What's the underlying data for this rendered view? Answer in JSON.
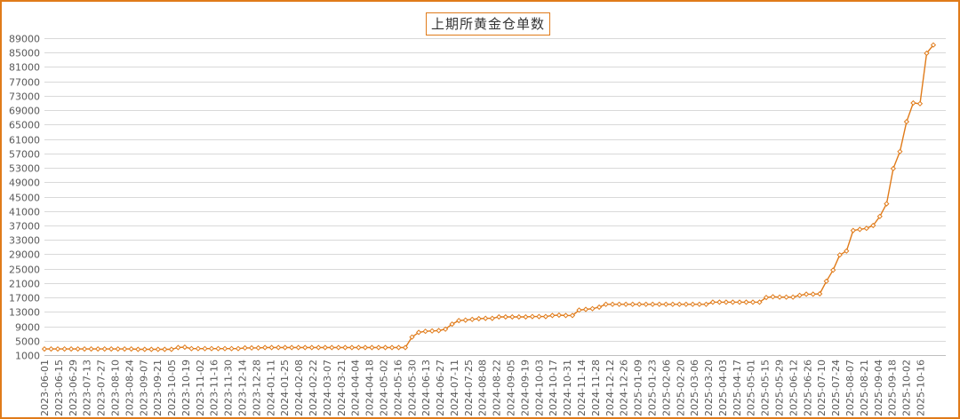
{
  "chart_data": {
    "type": "line",
    "title": "上期所黄金仓单数",
    "ylim": [
      1000,
      89000
    ],
    "yticks": [
      1000,
      5000,
      9000,
      13000,
      17000,
      21000,
      25000,
      29000,
      33000,
      37000,
      41000,
      45000,
      49000,
      53000,
      57000,
      61000,
      65000,
      69000,
      73000,
      77000,
      81000,
      85000,
      89000
    ],
    "ytick_labels": [
      "1000",
      "5000",
      "9000",
      "13000",
      "17000",
      "21000",
      "25000",
      "29000",
      "33000",
      "37000",
      "41000",
      "45000",
      "49000",
      "53000",
      "57000",
      "61000",
      "65000",
      "69000",
      "73000",
      "77000",
      "81000",
      "85000",
      "89000"
    ],
    "xtick_labels": [
      "2023-06-01",
      "2023-06-15",
      "2023-06-29",
      "2023-07-13",
      "2023-07-27",
      "2023-08-10",
      "2023-08-24",
      "2023-09-07",
      "2023-09-21",
      "2023-10-05",
      "2023-10-19",
      "2023-11-02",
      "2023-11-16",
      "2023-11-30",
      "2023-12-14",
      "2023-12-28",
      "2024-01-11",
      "2024-01-25",
      "2024-02-08",
      "2024-02-22",
      "2024-03-07",
      "2024-03-21",
      "2024-04-04",
      "2024-04-18",
      "2024-05-02",
      "2024-05-16",
      "2024-05-30",
      "2024-06-13",
      "2024-06-27",
      "2024-07-11",
      "2024-07-25",
      "2024-08-08",
      "2024-08-22",
      "2024-09-05",
      "2024-09-19",
      "2024-10-03",
      "2024-10-17",
      "2024-10-31",
      "2024-11-14",
      "2024-11-28",
      "2024-12-12",
      "2024-12-26",
      "2025-01-09",
      "2025-01-23",
      "2025-02-06",
      "2025-02-20",
      "2025-03-06",
      "2025-03-20",
      "2025-04-03",
      "2025-04-17",
      "2025-05-01",
      "2025-05-15",
      "2025-05-29",
      "2025-06-12",
      "2025-06-26",
      "2025-07-10",
      "2025-07-24",
      "2025-08-07",
      "2025-08-21",
      "2025-09-04",
      "2025-09-18",
      "2025-10-02",
      "2025-10-16"
    ],
    "grid": true,
    "legend": "none",
    "colors": {
      "line": "#e07b1a",
      "marker_fill": "#ffffff",
      "grid": "#d9d9d9",
      "axis_text": "#595959",
      "frame": "#e07b1a"
    },
    "series": [
      {
        "values": [
          2700,
          2700,
          2700,
          2700,
          2700,
          2700,
          2700,
          2700,
          2700,
          2700,
          2700,
          2700,
          2700,
          2700,
          2600,
          2600,
          2600,
          2600,
          2600,
          2600,
          3100,
          3200,
          2800,
          2800,
          2800,
          2800,
          2800,
          2800,
          2800,
          2800,
          3000,
          3000,
          3000,
          3100,
          3100,
          3100,
          3100,
          3100,
          3100,
          3100,
          3100,
          3100,
          3100,
          3100,
          3100,
          3100,
          3100,
          3100,
          3100,
          3100,
          3100,
          3100,
          3100,
          3100,
          3100,
          6000,
          7300,
          7600,
          7700,
          7800,
          8200,
          9600,
          10600,
          10700,
          10900,
          11100,
          11200,
          11200,
          11600,
          11600,
          11600,
          11600,
          11600,
          11700,
          11700,
          11700,
          12000,
          12100,
          12000,
          12000,
          13500,
          13700,
          13900,
          14300,
          15100,
          15100,
          15100,
          15100,
          15100,
          15100,
          15100,
          15100,
          15100,
          15100,
          15100,
          15100,
          15100,
          15100,
          15100,
          15100,
          15700,
          15700,
          15700,
          15700,
          15700,
          15700,
          15700,
          15700,
          17000,
          17200,
          17100,
          17100,
          17100,
          17600,
          17900,
          17900,
          18000,
          21500,
          24600,
          28800,
          29900,
          35600,
          35900,
          36200,
          37000,
          39500,
          43000,
          52800,
          57500,
          65800,
          71000,
          70800,
          84800,
          87100
        ]
      }
    ]
  }
}
